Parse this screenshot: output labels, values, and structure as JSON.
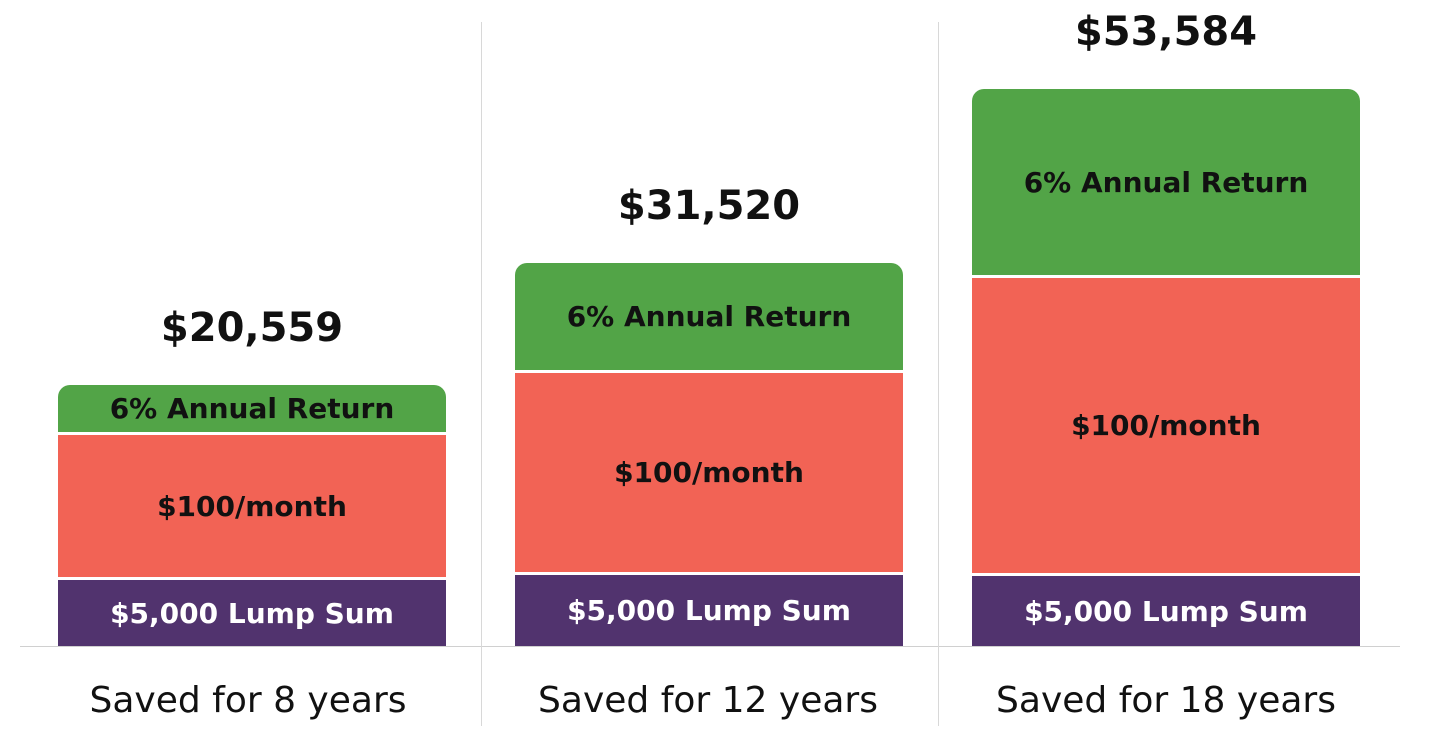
{
  "chart_data": {
    "type": "bar",
    "stacked": true,
    "categories": [
      "Saved for 8 years",
      "Saved for 12 years",
      "Saved for 18 years"
    ],
    "totals": [
      "$20,559",
      "$31,520",
      "$53,584"
    ],
    "total_values": [
      20559,
      31520,
      53584
    ],
    "series": [
      {
        "name": "$5,000 Lump Sum",
        "values": [
          5000,
          5000,
          5000
        ],
        "color": "#51336e",
        "text_color": "#ffffff"
      },
      {
        "name": "$100/month",
        "values": [
          9600,
          14400,
          21600
        ],
        "color": "#f26355",
        "text_color": "#111111"
      },
      {
        "name": "6% Annual Return",
        "values": [
          5959,
          12120,
          26984
        ],
        "color": "#52a447",
        "text_color": "#111111"
      }
    ],
    "legend": "none",
    "grid": false
  }
}
